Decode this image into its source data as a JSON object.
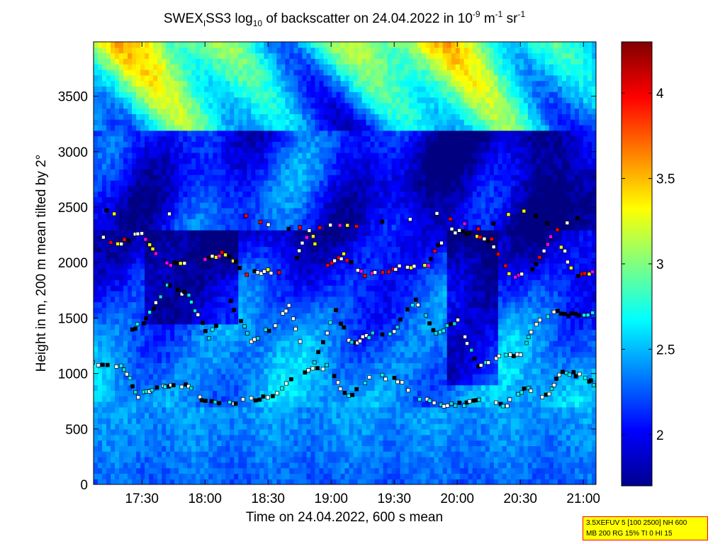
{
  "chart_data": {
    "type": "heatmap",
    "title": {
      "prefix": "SWEX",
      "prefix_sub": "I",
      "main": "SS3 log",
      "log_sub": "10",
      "mid": " of backscatter on 24.04.2022 in 10",
      "exp1": "-9",
      "unit1": " m",
      "exp2": "-1",
      "unit2": " sr",
      "exp3": "-1"
    },
    "xlabel": "Time on 24.04.2022, 600 s mean",
    "ylabel": "Height in m, 200 m mean tilted by 2°",
    "x_tick_labels": [
      "17:30",
      "18:00",
      "18:30",
      "19:00",
      "19:30",
      "20:00",
      "20:30",
      "21:00"
    ],
    "x_tick_values_min": [
      1050,
      1080,
      1110,
      1140,
      1170,
      1200,
      1230,
      1260
    ],
    "xlim_min": [
      1027,
      1266
    ],
    "y_ticks": [
      0,
      500,
      1000,
      1500,
      2000,
      2500,
      3000,
      3500
    ],
    "ylim": [
      0,
      3990
    ],
    "colorbar_ticks": [
      2,
      2.5,
      3,
      3.5,
      4
    ],
    "colorbar_range": [
      1.7,
      4.3
    ],
    "colormap": "jet",
    "layers": [
      {
        "name": "lower",
        "points": [
          [
            1027,
            1090
          ],
          [
            1040,
            1080
          ],
          [
            1048,
            800
          ],
          [
            1056,
            860
          ],
          [
            1064,
            880
          ],
          [
            1072,
            900
          ],
          [
            1080,
            740
          ],
          [
            1090,
            720
          ],
          [
            1100,
            760
          ],
          [
            1112,
            800
          ],
          [
            1125,
            1000
          ],
          [
            1138,
            1060
          ],
          [
            1148,
            780
          ],
          [
            1160,
            990
          ],
          [
            1172,
            940
          ],
          [
            1182,
            780
          ],
          [
            1192,
            700
          ],
          [
            1203,
            720
          ],
          [
            1212,
            760
          ],
          [
            1222,
            700
          ],
          [
            1232,
            860
          ],
          [
            1242,
            790
          ],
          [
            1250,
            1020
          ],
          [
            1260,
            980
          ],
          [
            1266,
            900
          ]
        ]
      },
      {
        "name": "mid",
        "points": [
          [
            1044,
            1380
          ],
          [
            1052,
            1480
          ],
          [
            1062,
            1800
          ],
          [
            1072,
            1700
          ],
          [
            1082,
            1330
          ],
          [
            1092,
            1650
          ],
          [
            1102,
            1290
          ],
          [
            1112,
            1420
          ],
          [
            1120,
            1600
          ],
          [
            1130,
            1010
          ],
          [
            1142,
            1560
          ],
          [
            1150,
            1270
          ],
          [
            1158,
            1340
          ],
          [
            1170,
            1380
          ],
          [
            1180,
            1660
          ],
          [
            1190,
            1350
          ],
          [
            1200,
            1480
          ],
          [
            1210,
            1070
          ],
          [
            1220,
            1150
          ],
          [
            1230,
            1180
          ],
          [
            1238,
            1450
          ],
          [
            1248,
            1560
          ],
          [
            1258,
            1520
          ],
          [
            1266,
            1560
          ]
        ]
      },
      {
        "name": "upper",
        "points": [
          [
            1030,
            2220
          ],
          [
            1040,
            2180
          ],
          [
            1050,
            2270
          ],
          [
            1060,
            1990
          ],
          [
            1070,
            2000
          ],
          [
            1080,
            2040
          ],
          [
            1090,
            2080
          ],
          [
            1100,
            1900
          ],
          [
            1110,
            1930
          ],
          [
            1120,
            1900
          ],
          [
            1130,
            2300
          ],
          [
            1138,
            1960
          ],
          [
            1146,
            2060
          ],
          [
            1156,
            1880
          ],
          [
            1166,
            1920
          ],
          [
            1176,
            1970
          ],
          [
            1186,
            1980
          ],
          [
            1196,
            2300
          ],
          [
            1206,
            2250
          ],
          [
            1216,
            2200
          ],
          [
            1226,
            1840
          ],
          [
            1236,
            1950
          ],
          [
            1246,
            2280
          ],
          [
            1256,
            1890
          ],
          [
            1266,
            1900
          ]
        ]
      },
      {
        "name": "top",
        "points": [
          [
            1030,
            2460
          ],
          [
            1040,
            2430
          ],
          [
            1075,
            2470
          ],
          [
            1100,
            2420
          ],
          [
            1110,
            2340
          ],
          [
            1125,
            2300
          ],
          [
            1140,
            2350
          ],
          [
            1152,
            2310
          ],
          [
            1190,
            2440
          ],
          [
            1210,
            2300
          ],
          [
            1232,
            2480
          ],
          [
            1248,
            2300
          ],
          [
            1262,
            2480
          ]
        ]
      }
    ]
  },
  "info_box": {
    "line1": "3.5XEFUV 5 [100 2500] NH 600",
    "line2": "MB 200 RG 15% TI 0 HI 15"
  }
}
